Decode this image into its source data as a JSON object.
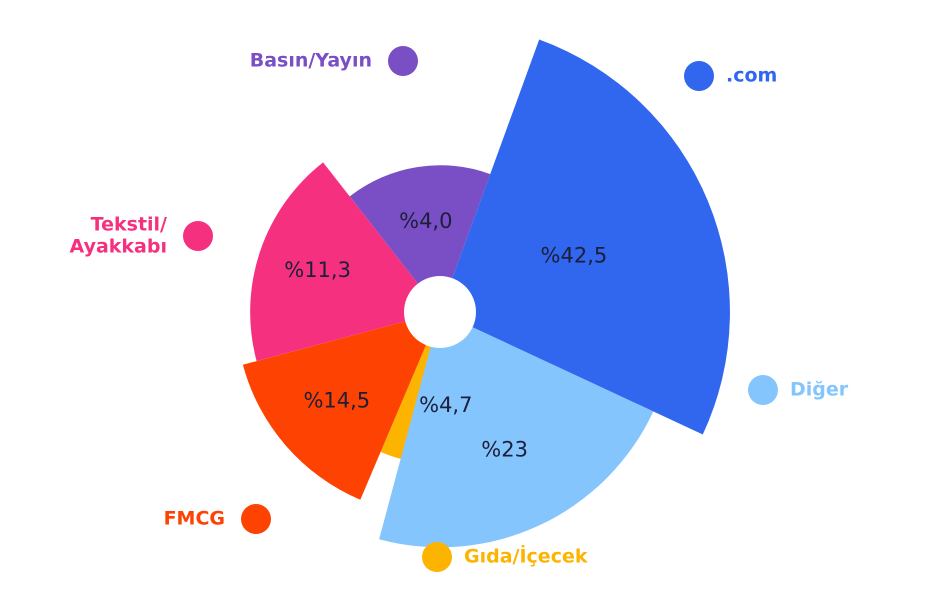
{
  "chart_data": {
    "type": "polar-area",
    "title": "",
    "segments": [
      {
        "name": ".com",
        "value": 42.5,
        "label": "%42,5",
        "color": "#3166ee"
      },
      {
        "name": "Diğer",
        "value": 23,
        "label": "%23",
        "color": "#85c5fd"
      },
      {
        "name": "Gıda/İçecek",
        "value": 4.7,
        "label": "%4,7",
        "color": "#fdb400"
      },
      {
        "name": "FMCG",
        "value": 14.5,
        "label": "%14,5",
        "color": "#fe4201"
      },
      {
        "name": "Tekstil/ Ayakkabı",
        "value": 11.3,
        "label": "%11,3",
        "color": "#f5317f"
      },
      {
        "name": "Basın/Yayın",
        "value": 4.0,
        "label": "%4,0",
        "color": "#7a4ec4"
      }
    ],
    "legend": [
      {
        "name": "Basın/Yayın",
        "lines": [
          "Basın/Yayın"
        ],
        "color": "#7a4ec4"
      },
      {
        "name": ".com",
        "lines": [
          ".com"
        ],
        "color": "#3166ee"
      },
      {
        "name": "Tekstil/ Ayakkabı",
        "lines": [
          "Tekstil/",
          "Ayakkabı"
        ],
        "color": "#f5317f"
      },
      {
        "name": "Diğer",
        "lines": [
          "Diğer"
        ],
        "color": "#85c5fd"
      },
      {
        "name": "FMCG",
        "lines": [
          "FMCG"
        ],
        "color": "#fe4201"
      },
      {
        "name": "Gıda/İçecek",
        "lines": [
          "Gıda/İçecek"
        ],
        "color": "#fdb400"
      }
    ]
  }
}
